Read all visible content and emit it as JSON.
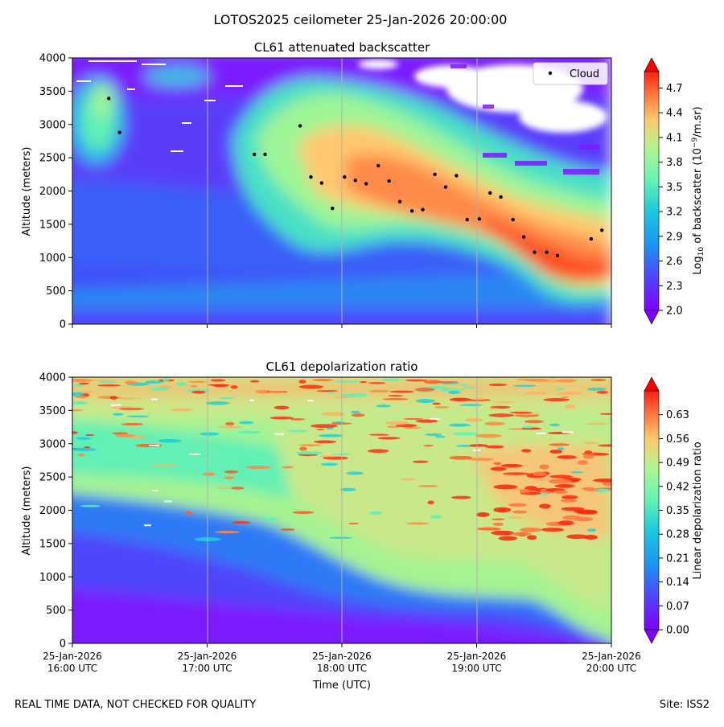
{
  "figure": {
    "suptitle": "LOTOS2025 ceilometer 25-Jan-2026 20:00:00",
    "footer_left": "REAL TIME DATA, NOT CHECKED FOR QUALITY",
    "footer_right": "Site: ISS2"
  },
  "chart_data": [
    {
      "type": "heatmap",
      "title": "CL61 attenuated backscatter",
      "xlabel": "",
      "ylabel": "Altitude (meters)",
      "ylim": [
        0,
        4000
      ],
      "yticks": [
        "0",
        "500",
        "1000",
        "1500",
        "2000",
        "2500",
        "3000",
        "3500",
        "4000"
      ],
      "x_range_hours_utc": [
        16.0,
        20.0
      ],
      "xticks_hours_utc": [
        16,
        17,
        18,
        19,
        20
      ],
      "colorbar": {
        "label": "Log10 of backscatter (10^-9/m.sr)",
        "label_parts": {
          "base": "Log",
          "sub": "10",
          "mid": " of backscatter (10",
          "sup": "−9",
          "end": "/m.sr)"
        },
        "range": [
          2.0,
          4.9
        ],
        "ticks": [
          "2.0",
          "2.3",
          "2.6",
          "2.9",
          "3.2",
          "3.5",
          "3.8",
          "4.1",
          "4.4",
          "4.7"
        ]
      },
      "legend": {
        "entries": [
          "Cloud"
        ],
        "placement": "top-right"
      },
      "cloud_base_points": [
        {
          "t": 16.27,
          "alt": 3390
        },
        {
          "t": 16.35,
          "alt": 2880
        },
        {
          "t": 17.35,
          "alt": 2550
        },
        {
          "t": 17.43,
          "alt": 2550
        },
        {
          "t": 17.69,
          "alt": 2980
        },
        {
          "t": 17.77,
          "alt": 2210
        },
        {
          "t": 17.85,
          "alt": 2120
        },
        {
          "t": 17.93,
          "alt": 1740
        },
        {
          "t": 18.02,
          "alt": 2210
        },
        {
          "t": 18.1,
          "alt": 2160
        },
        {
          "t": 18.18,
          "alt": 2110
        },
        {
          "t": 18.27,
          "alt": 2380
        },
        {
          "t": 18.35,
          "alt": 2150
        },
        {
          "t": 18.43,
          "alt": 1840
        },
        {
          "t": 18.52,
          "alt": 1700
        },
        {
          "t": 18.6,
          "alt": 1720
        },
        {
          "t": 18.69,
          "alt": 2250
        },
        {
          "t": 18.77,
          "alt": 2060
        },
        {
          "t": 18.85,
          "alt": 2230
        },
        {
          "t": 18.93,
          "alt": 1570
        },
        {
          "t": 19.02,
          "alt": 1580
        },
        {
          "t": 19.1,
          "alt": 1970
        },
        {
          "t": 19.18,
          "alt": 1910
        },
        {
          "t": 19.27,
          "alt": 1570
        },
        {
          "t": 19.35,
          "alt": 1310
        },
        {
          "t": 19.43,
          "alt": 1080
        },
        {
          "t": 19.52,
          "alt": 1080
        },
        {
          "t": 19.6,
          "alt": 1030
        },
        {
          "t": 19.85,
          "alt": 1280
        },
        {
          "t": 19.93,
          "alt": 1410
        }
      ]
    },
    {
      "type": "heatmap",
      "title": "CL61 depolarization ratio",
      "xlabel": "Time (UTC)",
      "ylabel": "Altitude (meters)",
      "ylim": [
        0,
        4000
      ],
      "yticks": [
        "0",
        "500",
        "1000",
        "1500",
        "2000",
        "2500",
        "3000",
        "3500",
        "4000"
      ],
      "x_range_hours_utc": [
        16.0,
        20.0
      ],
      "xticks_hours_utc": [
        16,
        17,
        18,
        19,
        20
      ],
      "xtick_labels": [
        {
          "date": "25-Jan-2026",
          "time": "16:00 UTC"
        },
        {
          "date": "25-Jan-2026",
          "time": "17:00 UTC"
        },
        {
          "date": "25-Jan-2026",
          "time": "18:00 UTC"
        },
        {
          "date": "25-Jan-2026",
          "time": "19:00 UTC"
        },
        {
          "date": "25-Jan-2026",
          "time": "20:00 UTC"
        }
      ],
      "colorbar": {
        "label": "Linear depolarization ratio",
        "range": [
          0.0,
          0.7
        ],
        "ticks": [
          "0.00",
          "0.07",
          "0.14",
          "0.21",
          "0.28",
          "0.35",
          "0.42",
          "0.49",
          "0.56",
          "0.63"
        ]
      }
    }
  ]
}
